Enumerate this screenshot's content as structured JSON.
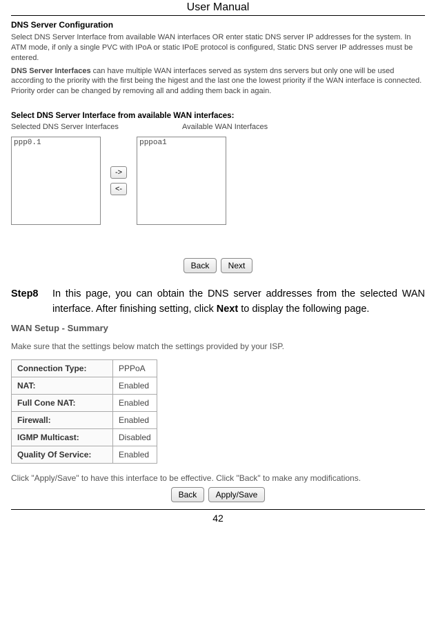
{
  "header": {
    "title": "User Manual"
  },
  "dns": {
    "heading": "DNS Server Configuration",
    "para1": "Select DNS Server Interface from available WAN interfaces OR enter static DNS server IP addresses for the system. In ATM mode, if only a single PVC with IPoA or static IPoE protocol is configured, Static DNS server IP addresses must be entered.",
    "para2_label": "DNS Server Interfaces",
    "para2_rest": " can have multiple WAN interfaces served as system dns servers but only one will be used according to the priority with the first being the higest and the last one the lowest priority if the WAN interface is connected. Priority order can be changed by removing all and adding them back in again.",
    "dual_title": "Select DNS Server Interface from available WAN interfaces:",
    "selected_label": "Selected DNS Server Interfaces",
    "available_label": "Available WAN Interfaces",
    "selected_items": [
      "ppp0.1"
    ],
    "available_items": [
      "pppoa1"
    ],
    "btn_right": "->",
    "btn_left": "<-",
    "btn_back": "Back",
    "btn_next": "Next"
  },
  "step": {
    "label": "Step8",
    "text_pre": "In this page, you can obtain the DNS server addresses from the selected WAN interface. After finishing setting, click ",
    "text_bold": "Next",
    "text_post": " to display the following page."
  },
  "summary": {
    "title": "WAN Setup - Summary",
    "intro": "Make sure that the settings below match the settings provided by your ISP.",
    "rows": [
      {
        "k": "Connection Type:",
        "v": "PPPoA"
      },
      {
        "k": "NAT:",
        "v": "Enabled"
      },
      {
        "k": "Full Cone NAT:",
        "v": "Enabled"
      },
      {
        "k": "Firewall:",
        "v": "Enabled"
      },
      {
        "k": "IGMP Multicast:",
        "v": "Disabled"
      },
      {
        "k": "Quality Of Service:",
        "v": "Enabled"
      }
    ],
    "apply_text": "Click \"Apply/Save\" to have this interface to be effective. Click \"Back\" to make any modifications.",
    "btn_back": "Back",
    "btn_apply": "Apply/Save"
  },
  "footer": {
    "page_number": "42"
  }
}
